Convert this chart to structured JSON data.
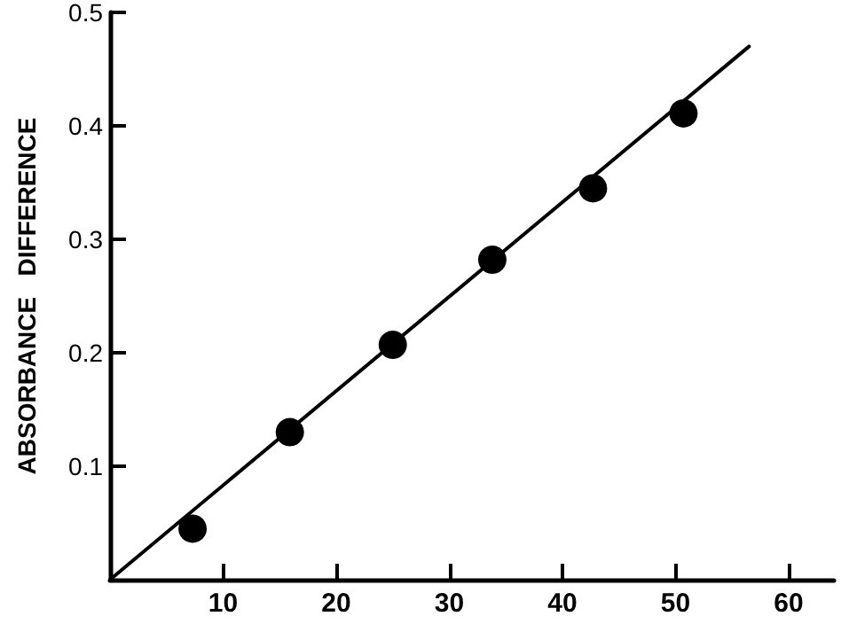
{
  "chart_data": {
    "type": "scatter",
    "ylabel": "ABSORBANCE   DIFFERENCE",
    "xlim": [
      0,
      64
    ],
    "xticks": [
      10,
      20,
      30,
      40,
      50,
      60
    ],
    "ylim": [
      0,
      0.5
    ],
    "yticks": [
      0.1,
      0.2,
      0.3,
      0.4,
      0.5
    ],
    "grid": false,
    "series": [
      {
        "color": "#000000",
        "marker": "circle",
        "x": [
          7.3,
          15.9,
          25.0,
          33.8,
          42.7,
          50.7
        ],
        "values": [
          0.045,
          0.13,
          0.207,
          0.282,
          0.345,
          0.411
        ]
      },
      {
        "type": "line",
        "color": "#000000",
        "marker": "none",
        "line_style": "solid",
        "x": [
          0,
          56.5
        ],
        "values": [
          0,
          0.47
        ]
      }
    ]
  }
}
